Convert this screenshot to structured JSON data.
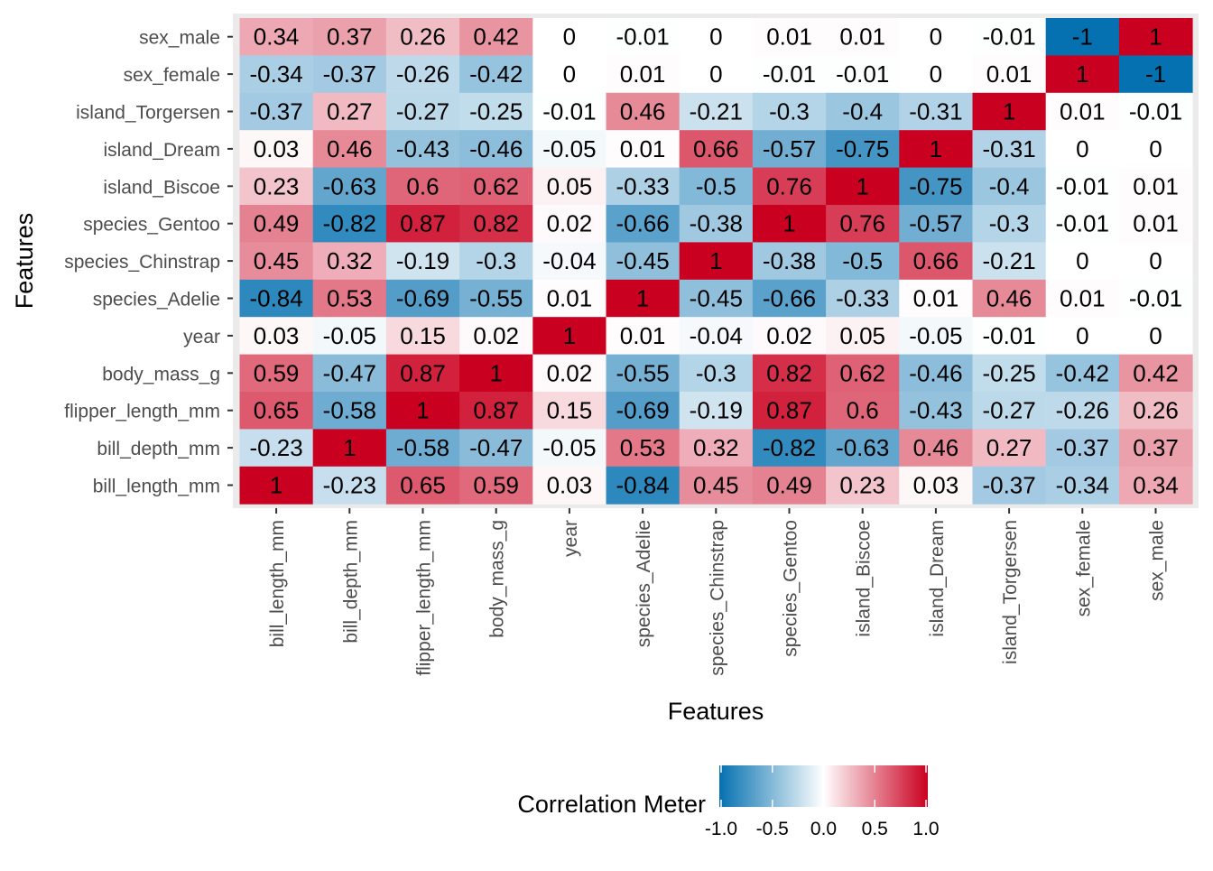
{
  "chart_data": {
    "type": "heatmap",
    "xlabel": "Features",
    "ylabel": "Features",
    "x_categories": [
      "bill_length_mm",
      "bill_depth_mm",
      "flipper_length_mm",
      "body_mass_g",
      "year",
      "species_Adelie",
      "species_Chinstrap",
      "species_Gentoo",
      "island_Biscoe",
      "island_Dream",
      "island_Torgersen",
      "sex_female",
      "sex_male"
    ],
    "y_categories_top_to_bottom": [
      "sex_male",
      "sex_female",
      "island_Torgersen",
      "island_Dream",
      "island_Biscoe",
      "species_Gentoo",
      "species_Chinstrap",
      "species_Adelie",
      "year",
      "body_mass_g",
      "flipper_length_mm",
      "bill_depth_mm",
      "bill_length_mm"
    ],
    "values": [
      [
        0.34,
        0.37,
        0.26,
        0.42,
        0,
        -0.01,
        0,
        0.01,
        0.01,
        0,
        -0.01,
        -1,
        1
      ],
      [
        -0.34,
        -0.37,
        -0.26,
        -0.42,
        0,
        0.01,
        0,
        -0.01,
        -0.01,
        0,
        0.01,
        1,
        -1
      ],
      [
        -0.37,
        0.27,
        -0.27,
        -0.25,
        -0.01,
        0.46,
        -0.21,
        -0.3,
        -0.4,
        -0.31,
        1,
        0.01,
        -0.01
      ],
      [
        0.03,
        0.46,
        -0.43,
        -0.46,
        -0.05,
        0.01,
        0.66,
        -0.57,
        -0.75,
        1,
        -0.31,
        0,
        0
      ],
      [
        0.23,
        -0.63,
        0.6,
        0.62,
        0.05,
        -0.33,
        -0.5,
        0.76,
        1,
        -0.75,
        -0.4,
        -0.01,
        0.01
      ],
      [
        0.49,
        -0.82,
        0.87,
        0.82,
        0.02,
        -0.66,
        -0.38,
        1,
        0.76,
        -0.57,
        -0.3,
        -0.01,
        0.01
      ],
      [
        0.45,
        0.32,
        -0.19,
        -0.3,
        -0.04,
        -0.45,
        1,
        -0.38,
        -0.5,
        0.66,
        -0.21,
        0,
        0
      ],
      [
        -0.84,
        0.53,
        -0.69,
        -0.55,
        0.01,
        1,
        -0.45,
        -0.66,
        -0.33,
        0.01,
        0.46,
        0.01,
        -0.01
      ],
      [
        0.03,
        -0.05,
        0.15,
        0.02,
        1,
        0.01,
        -0.04,
        0.02,
        0.05,
        -0.05,
        -0.01,
        0,
        0
      ],
      [
        0.59,
        -0.47,
        0.87,
        1,
        0.02,
        -0.55,
        -0.3,
        0.82,
        0.62,
        -0.46,
        -0.25,
        -0.42,
        0.42
      ],
      [
        0.65,
        -0.58,
        1,
        0.87,
        0.15,
        -0.69,
        -0.19,
        0.87,
        0.6,
        -0.43,
        -0.27,
        -0.26,
        0.26
      ],
      [
        -0.23,
        1,
        -0.58,
        -0.47,
        -0.05,
        0.53,
        0.32,
        -0.82,
        -0.63,
        0.46,
        0.27,
        -0.37,
        0.37
      ],
      [
        1,
        -0.23,
        0.65,
        0.59,
        0.03,
        -0.84,
        0.45,
        0.49,
        0.23,
        0.03,
        -0.37,
        -0.34,
        0.34
      ]
    ],
    "color_scale": {
      "low": "#0571b0",
      "mid": "#ffffff",
      "high": "#ca0020",
      "limits": [
        -1,
        1
      ]
    },
    "legend": {
      "title": "Correlation Meter",
      "position": "bottom",
      "ticks": [
        "-1.0",
        "-0.5",
        "0.0",
        "0.5",
        "1.0"
      ]
    },
    "panel_background": "#ebebeb"
  }
}
